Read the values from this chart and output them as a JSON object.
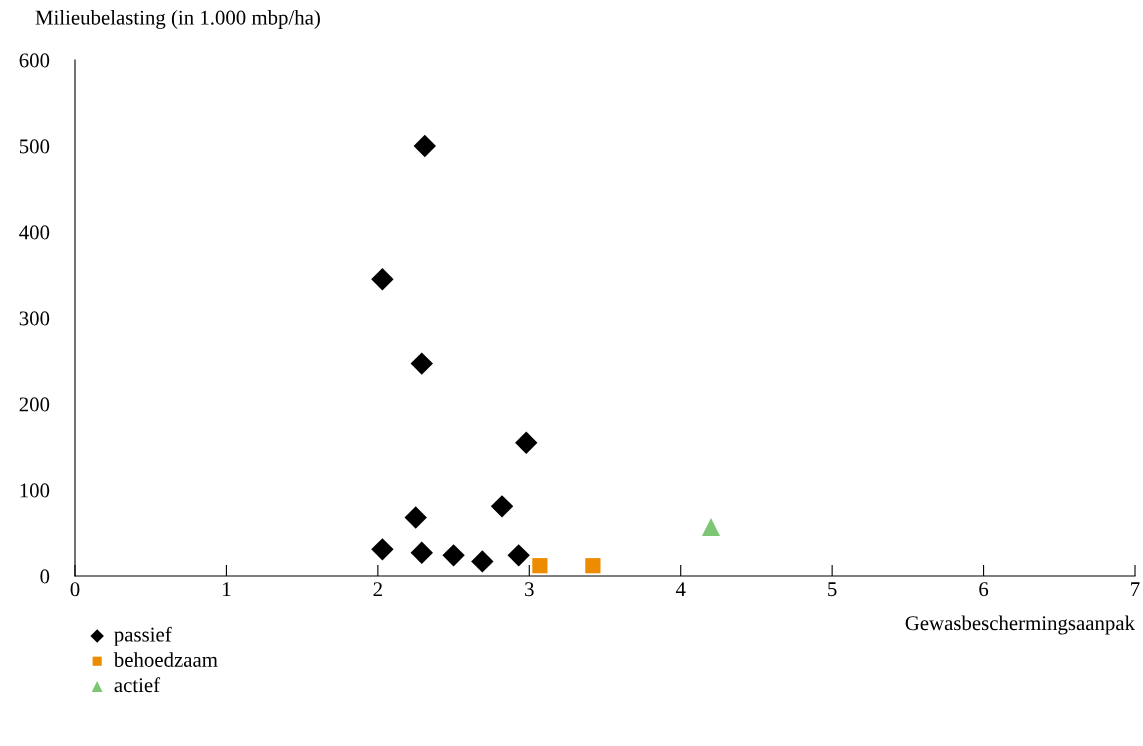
{
  "chart_data": {
    "type": "scatter",
    "xlabel": "Gewasbeschermingsaanpak",
    "ylabel": "Milieubelasting (in 1.000 mbp/ha)",
    "xlim": [
      0,
      7
    ],
    "xticks": [
      0,
      1,
      2,
      3,
      4,
      5,
      6,
      7
    ],
    "ylim": [
      0,
      600
    ],
    "yticks": [
      0,
      100,
      200,
      300,
      400,
      500,
      600
    ],
    "grid": false,
    "legend": "bottom left",
    "series": [
      {
        "name": "passief",
        "color": "#000000",
        "marker": "diamond",
        "x": [
          2.31,
          2.03,
          2.29,
          2.98,
          2.25,
          2.82,
          2.03,
          2.29,
          2.5,
          2.69,
          2.93
        ],
        "values": [
          500,
          345,
          247,
          155,
          68,
          81,
          31,
          27,
          24,
          17,
          24
        ]
      },
      {
        "name": "behoedzaam",
        "color": "#ee8c00",
        "marker": "square",
        "x": [
          3.07,
          3.42
        ],
        "values": [
          12,
          12
        ]
      },
      {
        "name": "actief",
        "color": "#7dc673",
        "marker": "triangle",
        "x": [
          4.2
        ],
        "values": [
          57
        ]
      }
    ]
  }
}
